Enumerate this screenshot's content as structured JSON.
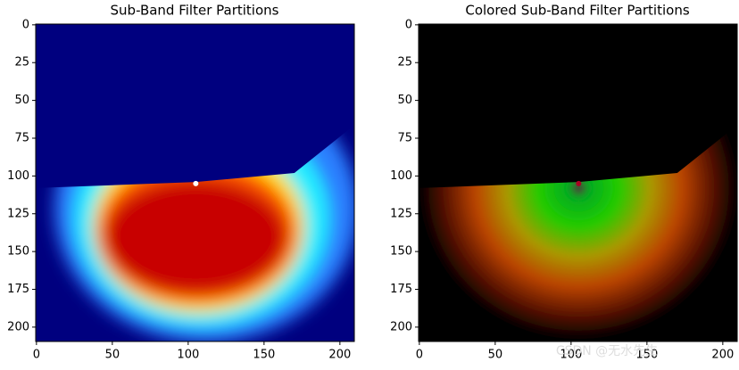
{
  "chart_data": [
    {
      "type": "image",
      "title": "Sub-Band Filter Partitions",
      "colormap": "jet",
      "xlim": [
        -0.5,
        209.5
      ],
      "ylim": [
        209.5,
        -0.5
      ],
      "xticks": [
        0,
        50,
        100,
        150,
        200
      ],
      "yticks": [
        0,
        25,
        50,
        75,
        100,
        125,
        150,
        175,
        200
      ]
    },
    {
      "type": "image",
      "title": "Colored Sub-Band Filter Partitions",
      "colormap": "rgb",
      "xlim": [
        -0.5,
        209.5
      ],
      "ylim": [
        209.5,
        -0.5
      ],
      "xticks": [
        0,
        50,
        100,
        150,
        200
      ],
      "yticks": [
        0,
        25,
        50,
        75,
        100,
        125,
        150,
        175,
        200
      ]
    }
  ],
  "watermark": "CSDN @无水先生"
}
